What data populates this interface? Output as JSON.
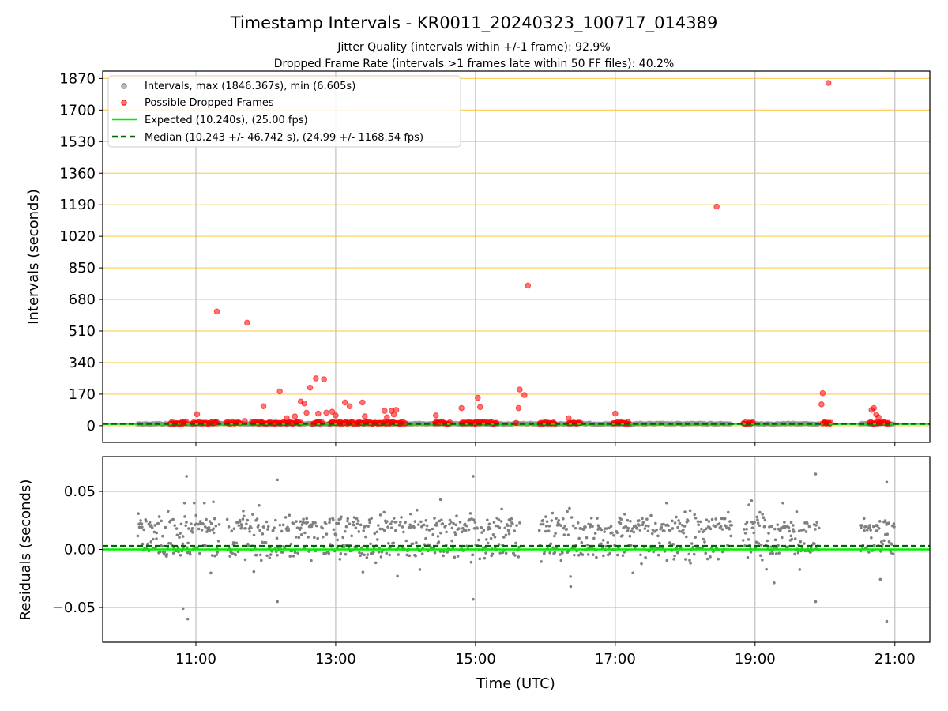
{
  "figure": {
    "title": "Timestamp Intervals - KR0011_20240323_100717_014389",
    "subtitle_1": "Jitter Quality (intervals within +/-1 frame): 92.9%",
    "subtitle_2": "Dropped Frame Rate (intervals >1 frames late within 50 FF files): 40.2%"
  },
  "colors": {
    "interval_points": "#808080",
    "dropped_points": "#ff0000",
    "expected_line": "#00ee00",
    "median_line": "#006400",
    "horizontal_grid": "#ffd060",
    "vertical_grid": "#c0c0c0"
  },
  "chart_data": [
    {
      "type": "scatter",
      "ylabel": "Intervals (seconds)",
      "xlim": [
        "09:40",
        "21:30"
      ],
      "ylim": [
        -90,
        1910
      ],
      "yticks": [
        0,
        170,
        340,
        510,
        680,
        850,
        1020,
        1190,
        1360,
        1530,
        1700,
        1870
      ],
      "ytick_labels": [
        "0",
        "170",
        "340",
        "510",
        "680",
        "850",
        "1020",
        "1190",
        "1360",
        "1530",
        "1700",
        "1870"
      ],
      "xticks": [
        "11:00",
        "13:00",
        "15:00",
        "17:00",
        "19:00",
        "21:00"
      ],
      "grid": true,
      "legend_position": "top-left",
      "legend": [
        "Intervals, max (1846.367s), min (6.605s)",
        "Possible Dropped Frames",
        "Expected (10.240s), (25.00 fps)",
        "Median (10.243 +/- 46.742 s), (24.99 +/- 1168.54 fps)"
      ],
      "expected_interval": 10.24,
      "median_interval": 10.243,
      "interval_segments": [
        [
          "10:10",
          "10:42"
        ],
        [
          "10:42",
          "11:30"
        ],
        [
          "11:40",
          "18:40"
        ],
        [
          "18:50",
          "19:55"
        ],
        [
          "20:30",
          "21:00"
        ]
      ],
      "dropped_frames": [
        {
          "x": "10:48",
          "y": 8
        },
        {
          "x": "11:01",
          "y": 62
        },
        {
          "x": "11:11",
          "y": 12
        },
        {
          "x": "11:15",
          "y": 22
        },
        {
          "x": "11:17",
          "y": 18
        },
        {
          "x": "11:18",
          "y": 615
        },
        {
          "x": "11:42",
          "y": 25
        },
        {
          "x": "11:44",
          "y": 555
        },
        {
          "x": "11:58",
          "y": 105
        },
        {
          "x": "12:08",
          "y": 10
        },
        {
          "x": "12:12",
          "y": 185
        },
        {
          "x": "12:18",
          "y": 40
        },
        {
          "x": "12:22",
          "y": 15
        },
        {
          "x": "12:25",
          "y": 50
        },
        {
          "x": "12:30",
          "y": 130
        },
        {
          "x": "12:33",
          "y": 120
        },
        {
          "x": "12:35",
          "y": 70
        },
        {
          "x": "12:38",
          "y": 205
        },
        {
          "x": "12:40",
          "y": 10
        },
        {
          "x": "12:43",
          "y": 255
        },
        {
          "x": "12:45",
          "y": 65
        },
        {
          "x": "12:50",
          "y": 250
        },
        {
          "x": "12:52",
          "y": 70
        },
        {
          "x": "12:57",
          "y": 75
        },
        {
          "x": "13:00",
          "y": 55
        },
        {
          "x": "13:04",
          "y": 10
        },
        {
          "x": "13:08",
          "y": 125
        },
        {
          "x": "13:10",
          "y": 10
        },
        {
          "x": "13:12",
          "y": 105
        },
        {
          "x": "13:16",
          "y": 8
        },
        {
          "x": "13:20",
          "y": 12
        },
        {
          "x": "13:23",
          "y": 125
        },
        {
          "x": "13:25",
          "y": 50
        },
        {
          "x": "13:32",
          "y": 10
        },
        {
          "x": "13:38",
          "y": 15
        },
        {
          "x": "13:42",
          "y": 80
        },
        {
          "x": "13:44",
          "y": 45
        },
        {
          "x": "13:46",
          "y": 15
        },
        {
          "x": "13:48",
          "y": 80
        },
        {
          "x": "13:50",
          "y": 60
        },
        {
          "x": "13:52",
          "y": 85
        },
        {
          "x": "13:55",
          "y": 10
        },
        {
          "x": "14:00",
          "y": 12
        },
        {
          "x": "14:26",
          "y": 55
        },
        {
          "x": "14:28",
          "y": 15
        },
        {
          "x": "14:48",
          "y": 95
        },
        {
          "x": "15:00",
          "y": 20
        },
        {
          "x": "15:02",
          "y": 150
        },
        {
          "x": "15:04",
          "y": 100
        },
        {
          "x": "15:35",
          "y": 15
        },
        {
          "x": "15:37",
          "y": 95
        },
        {
          "x": "15:38",
          "y": 195
        },
        {
          "x": "15:42",
          "y": 165
        },
        {
          "x": "15:45",
          "y": 755
        },
        {
          "x": "16:20",
          "y": 40
        },
        {
          "x": "17:00",
          "y": 65
        },
        {
          "x": "18:27",
          "y": 1180
        },
        {
          "x": "19:57",
          "y": 115
        },
        {
          "x": "19:58",
          "y": 175
        },
        {
          "x": "20:03",
          "y": 1846
        },
        {
          "x": "20:00",
          "y": 15
        },
        {
          "x": "20:40",
          "y": 85
        },
        {
          "x": "20:42",
          "y": 95
        },
        {
          "x": "20:44",
          "y": 60
        },
        {
          "x": "20:46",
          "y": 45
        },
        {
          "x": "20:48",
          "y": 15
        }
      ],
      "dropped_clusters": [
        [
          "10:38",
          "10:52"
        ],
        [
          "10:57",
          "11:18"
        ],
        [
          "11:26",
          "11:38"
        ],
        [
          "11:48",
          "12:30"
        ],
        [
          "12:42",
          "12:48"
        ],
        [
          "12:55",
          "13:15"
        ],
        [
          "13:18",
          "13:58"
        ],
        [
          "14:25",
          "14:38"
        ],
        [
          "14:48",
          "15:10"
        ],
        [
          "15:12",
          "15:18"
        ],
        [
          "15:55",
          "16:08"
        ],
        [
          "16:20",
          "16:30"
        ],
        [
          "16:58",
          "17:12"
        ],
        [
          "18:50",
          "18:58"
        ],
        [
          "19:58",
          "20:05"
        ],
        [
          "20:38",
          "20:55"
        ]
      ]
    },
    {
      "type": "scatter",
      "xlabel": "Time (UTC)",
      "ylabel": "Residuals (seconds)",
      "xlim": [
        "09:40",
        "21:30"
      ],
      "ylim": [
        -0.08,
        0.08
      ],
      "yticks": [
        -0.05,
        0.0,
        0.05
      ],
      "ytick_labels": [
        "−0.05",
        "0.00",
        "0.05"
      ],
      "xticks": [
        "11:00",
        "13:00",
        "15:00",
        "17:00",
        "19:00",
        "21:00"
      ],
      "xtick_labels": [
        "11:00",
        "13:00",
        "15:00",
        "17:00",
        "19:00",
        "21:00"
      ],
      "grid": true,
      "expected_residual": 0.0,
      "median_residual": 0.003,
      "residual_segments": [
        [
          "10:10",
          "11:20"
        ],
        [
          "11:27",
          "12:45"
        ],
        [
          "12:48",
          "15:38"
        ],
        [
          "15:55",
          "18:40"
        ],
        [
          "18:50",
          "19:55"
        ],
        [
          "20:30",
          "21:00"
        ]
      ],
      "residual_bands": [
        0.0,
        0.02
      ],
      "residual_spread": 0.008,
      "outliers": [
        {
          "x": "10:52",
          "y": 0.063
        },
        {
          "x": "10:49",
          "y": -0.051
        },
        {
          "x": "10:53",
          "y": -0.06
        },
        {
          "x": "12:10",
          "y": 0.06
        },
        {
          "x": "12:10",
          "y": -0.045
        },
        {
          "x": "14:58",
          "y": 0.063
        },
        {
          "x": "14:58",
          "y": -0.043
        },
        {
          "x": "19:52",
          "y": 0.065
        },
        {
          "x": "19:52",
          "y": -0.045
        },
        {
          "x": "20:53",
          "y": 0.058
        },
        {
          "x": "20:53",
          "y": -0.062
        },
        {
          "x": "11:15",
          "y": 0.041
        },
        {
          "x": "14:30",
          "y": 0.043
        },
        {
          "x": "18:57",
          "y": 0.042
        }
      ]
    }
  ]
}
